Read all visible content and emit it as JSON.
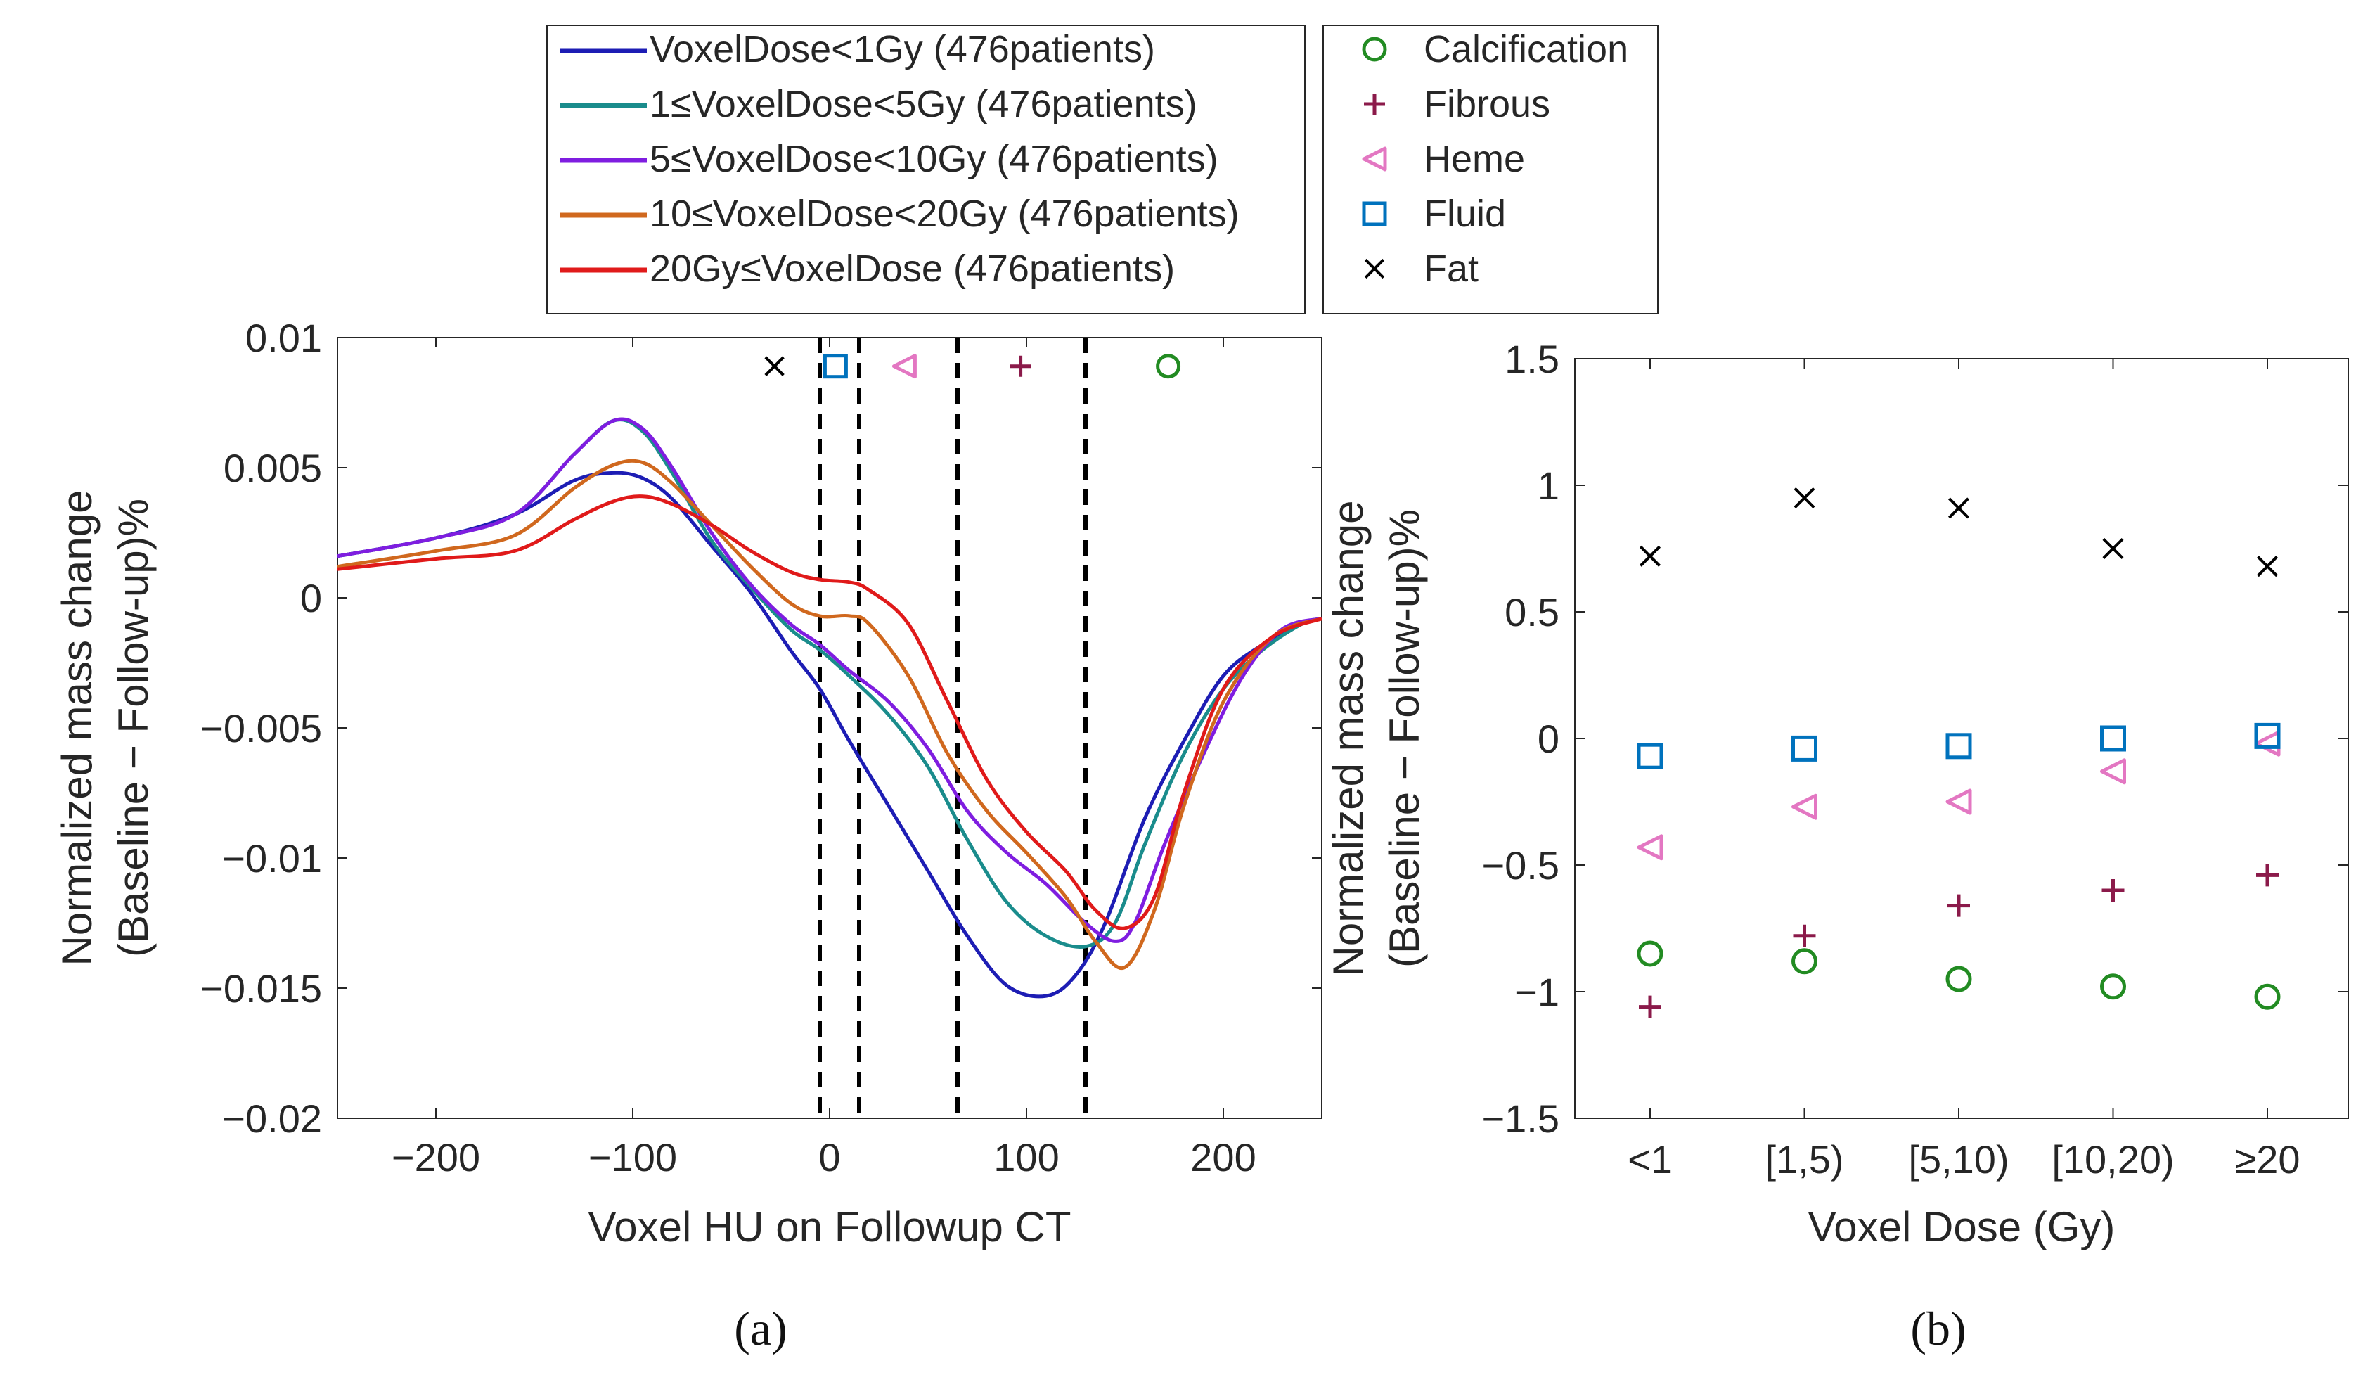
{
  "chart_data": [
    {
      "type": "line",
      "panel_label": "(a)",
      "xlabel": "Voxel HU on Followup CT",
      "ylabel": [
        "Normalized mass change",
        "(Baseline − Follow-up)%"
      ],
      "xlim": [
        -250,
        250
      ],
      "ylim": [
        -0.02,
        0.01
      ],
      "xticks": [
        -200,
        -100,
        0,
        100,
        200
      ],
      "xtick_labels": [
        "−200",
        "−100",
        "0",
        "100",
        "200"
      ],
      "yticks": [
        0.01,
        0.005,
        0,
        -0.005,
        -0.01,
        -0.015,
        -0.02
      ],
      "ytick_labels": [
        "0.01",
        "0.005",
        "0",
        "−0.005",
        "−0.01",
        "−0.015",
        "−0.02"
      ],
      "vlines": [
        -5,
        15,
        65,
        130
      ],
      "tissue_markers": [
        {
          "name": "Fat",
          "x": -28,
          "y": 0.0089,
          "marker": "x",
          "color": "#000000"
        },
        {
          "name": "Fluid",
          "x": 3,
          "y": 0.0089,
          "marker": "s",
          "color": "#0072BD"
        },
        {
          "name": "Heme",
          "x": 38,
          "y": 0.0089,
          "marker": "<",
          "color": "#E377C2"
        },
        {
          "name": "Fibrous",
          "x": 97,
          "y": 0.0089,
          "marker": "+",
          "color": "#8B1A4A"
        },
        {
          "name": "Calcification",
          "x": 172,
          "y": 0.0089,
          "marker": "o",
          "color": "#228B22"
        }
      ],
      "series": [
        {
          "name": "VoxelDose<1Gy (476patients)",
          "color": "#1D1DB4",
          "x": [
            -250,
            -200,
            -160,
            -130,
            -110,
            -95,
            -80,
            -60,
            -40,
            -20,
            -5,
            10,
            30,
            50,
            70,
            90,
            110,
            125,
            140,
            160,
            180,
            200,
            220,
            240,
            250
          ],
          "y": [
            0.0016,
            0.0023,
            0.0032,
            0.0045,
            0.0048,
            0.0046,
            0.0038,
            0.002,
            0.0002,
            -0.002,
            -0.0035,
            -0.0055,
            -0.008,
            -0.0105,
            -0.013,
            -0.0149,
            -0.0153,
            -0.0145,
            -0.0125,
            -0.0085,
            -0.0055,
            -0.003,
            -0.0018,
            -0.001,
            -0.0008
          ]
        },
        {
          "name": "1≤VoxelDose<5Gy (476patients)",
          "color": "#1A8C8C",
          "x": [
            -250,
            -200,
            -160,
            -130,
            -110,
            -95,
            -80,
            -60,
            -40,
            -20,
            -5,
            10,
            30,
            50,
            70,
            90,
            110,
            130,
            145,
            160,
            180,
            200,
            220,
            240,
            250
          ],
          "y": [
            0.0016,
            0.0023,
            0.0032,
            0.0055,
            0.0068,
            0.0064,
            0.0048,
            0.0022,
            0.0004,
            -0.0012,
            -0.002,
            -0.003,
            -0.0045,
            -0.0065,
            -0.0093,
            -0.0117,
            -0.013,
            -0.0134,
            -0.0125,
            -0.0095,
            -0.006,
            -0.0035,
            -0.002,
            -0.001,
            -0.0008
          ]
        },
        {
          "name": "5≤VoxelDose<10Gy (476patients)",
          "color": "#7F1DE0",
          "x": [
            -250,
            -200,
            -160,
            -130,
            -110,
            -95,
            -80,
            -60,
            -40,
            -20,
            -5,
            10,
            30,
            50,
            70,
            90,
            110,
            130,
            145,
            155,
            170,
            190,
            210,
            230,
            250
          ],
          "y": [
            0.0016,
            0.0023,
            0.0032,
            0.0055,
            0.0068,
            0.0065,
            0.005,
            0.0025,
            0.0005,
            -0.001,
            -0.0018,
            -0.0028,
            -0.004,
            -0.0058,
            -0.0082,
            -0.0098,
            -0.011,
            -0.0125,
            -0.0132,
            -0.0125,
            -0.0095,
            -0.006,
            -0.003,
            -0.0012,
            -0.0008
          ]
        },
        {
          "name": "10≤VoxelDose<20Gy (476patients)",
          "color": "#D0681E",
          "x": [
            -250,
            -200,
            -160,
            -130,
            -110,
            -95,
            -80,
            -60,
            -40,
            -20,
            -5,
            10,
            20,
            40,
            60,
            80,
            100,
            120,
            135,
            150,
            165,
            180,
            200,
            225,
            250
          ],
          "y": [
            0.0012,
            0.0018,
            0.0024,
            0.0042,
            0.0051,
            0.0052,
            0.0044,
            0.0028,
            0.0012,
            -0.0002,
            -0.0007,
            -0.0007,
            -0.001,
            -0.003,
            -0.006,
            -0.0082,
            -0.0098,
            -0.0115,
            -0.0132,
            -0.0142,
            -0.012,
            -0.008,
            -0.004,
            -0.0015,
            -0.0008
          ]
        },
        {
          "name": "20Gy≤VoxelDose (476patients)",
          "color": "#E01A1A",
          "x": [
            -250,
            -200,
            -160,
            -130,
            -110,
            -95,
            -80,
            -60,
            -40,
            -20,
            -5,
            10,
            20,
            40,
            60,
            80,
            100,
            120,
            135,
            150,
            165,
            180,
            200,
            225,
            250
          ],
          "y": [
            0.0011,
            0.0015,
            0.0018,
            0.003,
            0.0037,
            0.0039,
            0.0036,
            0.0028,
            0.0018,
            0.001,
            0.0007,
            0.0006,
            0.0003,
            -0.001,
            -0.004,
            -0.007,
            -0.009,
            -0.0105,
            -0.012,
            -0.0127,
            -0.0115,
            -0.0075,
            -0.0035,
            -0.0015,
            -0.0008
          ]
        }
      ]
    },
    {
      "type": "scatter",
      "panel_label": "(b)",
      "xlabel": "Voxel Dose (Gy)",
      "ylabel": [
        "Normalized mass change",
        "(Baseline − Follow-up)%"
      ],
      "categories": [
        "<1",
        "[1,5)",
        "[5,10)",
        "[10,20)",
        "≥20"
      ],
      "ylim": [
        -1.5,
        1.5
      ],
      "yticks": [
        1.5,
        1,
        0.5,
        0,
        -0.5,
        -1,
        -1.5
      ],
      "ytick_labels": [
        "1.5",
        "1",
        "0.5",
        "0",
        "−0.5",
        "−1",
        "−1.5"
      ],
      "series": [
        {
          "name": "Calcification",
          "marker": "o",
          "color": "#228B22",
          "values": [
            -0.85,
            -0.88,
            -0.95,
            -0.98,
            -1.02
          ]
        },
        {
          "name": "Fibrous",
          "marker": "+",
          "color": "#8B1A4A",
          "values": [
            -1.06,
            -0.78,
            -0.66,
            -0.6,
            -0.54
          ]
        },
        {
          "name": "Heme",
          "marker": "<",
          "color": "#E377C2",
          "values": [
            -0.43,
            -0.27,
            -0.25,
            -0.13,
            -0.02
          ]
        },
        {
          "name": "Fluid",
          "marker": "s",
          "color": "#0072BD",
          "values": [
            -0.07,
            -0.04,
            -0.03,
            0.0,
            0.01
          ]
        },
        {
          "name": "Fat",
          "marker": "x",
          "color": "#000000",
          "values": [
            0.72,
            0.95,
            0.91,
            0.75,
            0.68
          ]
        }
      ]
    }
  ]
}
